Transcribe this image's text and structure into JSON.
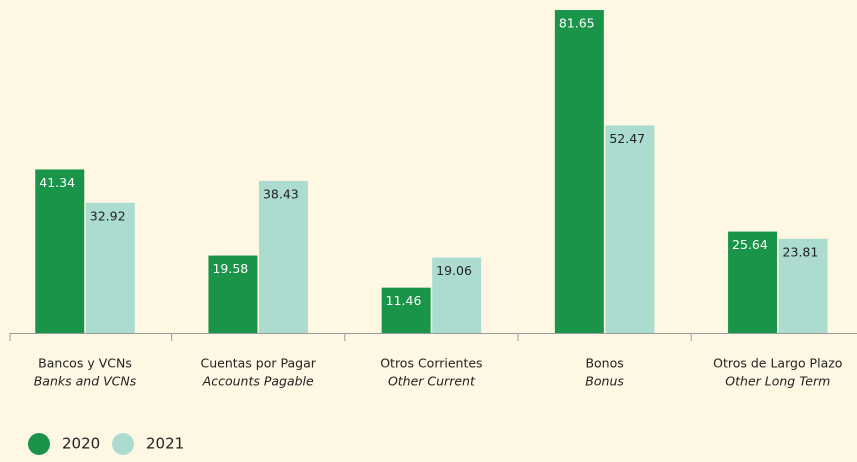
{
  "chart_data": {
    "type": "bar",
    "categories": [
      "Bancos y VCNs",
      "Cuentas por Pagar",
      "Otros Corrientes",
      "Bonos",
      "Otros de Largo Plazo"
    ],
    "category_translations": [
      "Banks and VCNs",
      "Accounts Pagable",
      "Other Current",
      "Bonus",
      "Other Long Term"
    ],
    "series": [
      {
        "name": "2020",
        "color": "#1a9448",
        "label_color": "#ffffff",
        "values": [
          41.34,
          19.58,
          11.46,
          81.65,
          25.64
        ]
      },
      {
        "name": "2021",
        "color": "#acdcd0",
        "label_color": "#222222",
        "values": [
          32.92,
          38.43,
          19.06,
          52.47,
          23.81
        ]
      }
    ],
    "legend": "bottom-left"
  }
}
